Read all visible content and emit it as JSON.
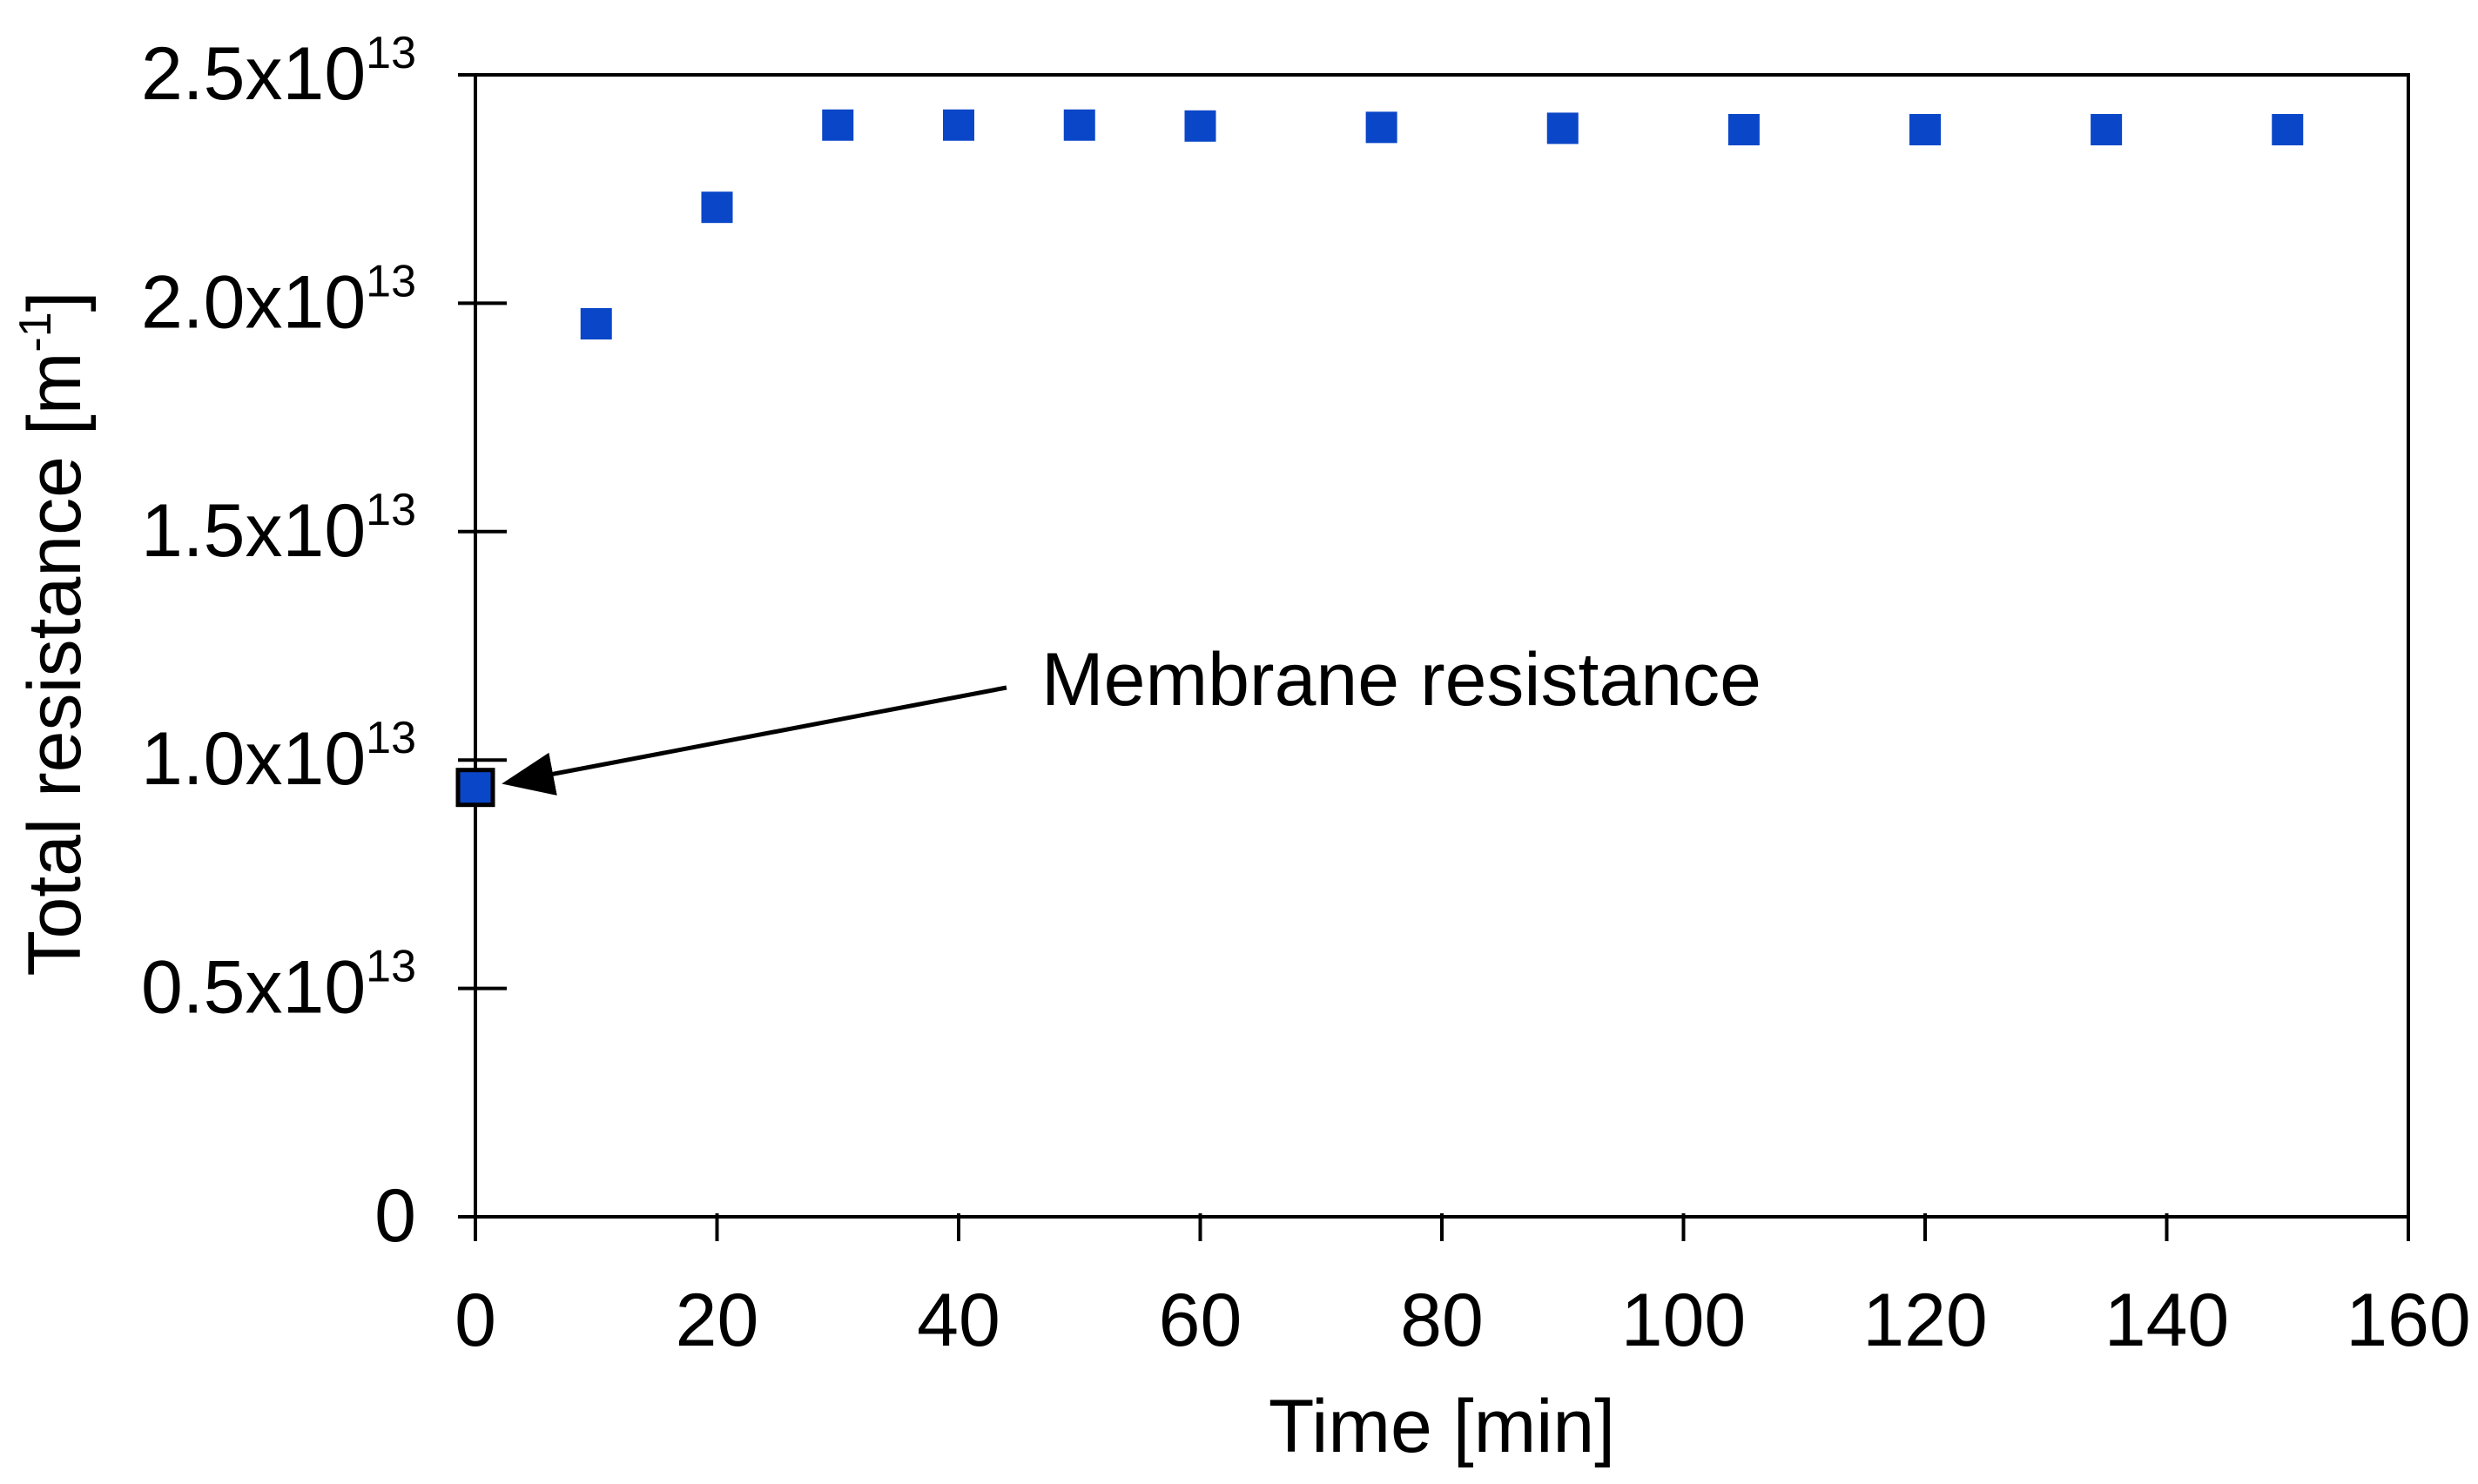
{
  "chart_data": {
    "type": "scatter",
    "title": "",
    "xlabel": "Time [min]",
    "ylabel": {
      "main": "Total resistance [m",
      "sup": "-1",
      "end": "]"
    },
    "xlim": [
      0,
      160
    ],
    "ylim": [
      0,
      25000000000000.0
    ],
    "xticks": [
      0,
      20,
      40,
      60,
      80,
      100,
      120,
      140,
      160
    ],
    "xtick_labels": [
      "0",
      "20",
      "40",
      "60",
      "80",
      "100",
      "120",
      "140",
      "160"
    ],
    "yticks": [
      0,
      5000000000000.0,
      10000000000000.0,
      15000000000000.0,
      20000000000000.0,
      25000000000000.0
    ],
    "ytick_labels": [
      {
        "mantissa": "0",
        "exp": ""
      },
      {
        "mantissa": "0.5x10",
        "exp": "13"
      },
      {
        "mantissa": "1.0x10",
        "exp": "13"
      },
      {
        "mantissa": "1.5x10",
        "exp": "13"
      },
      {
        "mantissa": "2.0x10",
        "exp": "13"
      },
      {
        "mantissa": "2.5x10",
        "exp": "13"
      }
    ],
    "grid": false,
    "series": [
      {
        "name": "Total resistance",
        "marker": "square",
        "color": "#0a46c8",
        "x": [
          10,
          20,
          30,
          40,
          50,
          60,
          75,
          90,
          105,
          120,
          135,
          150
        ],
        "y": [
          19550000000000.0,
          22100000000000.0,
          23900000000000.0,
          23900000000000.0,
          23900000000000.0,
          23880000000000.0,
          23850000000000.0,
          23830000000000.0,
          23800000000000.0,
          23800000000000.0,
          23800000000000.0,
          23800000000000.0
        ]
      },
      {
        "name": "Membrane resistance",
        "marker": "square",
        "color": "#0a46c8",
        "edgecolor": "#000000",
        "x": [
          0
        ],
        "y": [
          9400000000000.0
        ]
      }
    ],
    "annotations": [
      {
        "text": "Membrane resistance",
        "points_to": {
          "x": 0,
          "y": 9400000000000.0
        }
      }
    ]
  }
}
